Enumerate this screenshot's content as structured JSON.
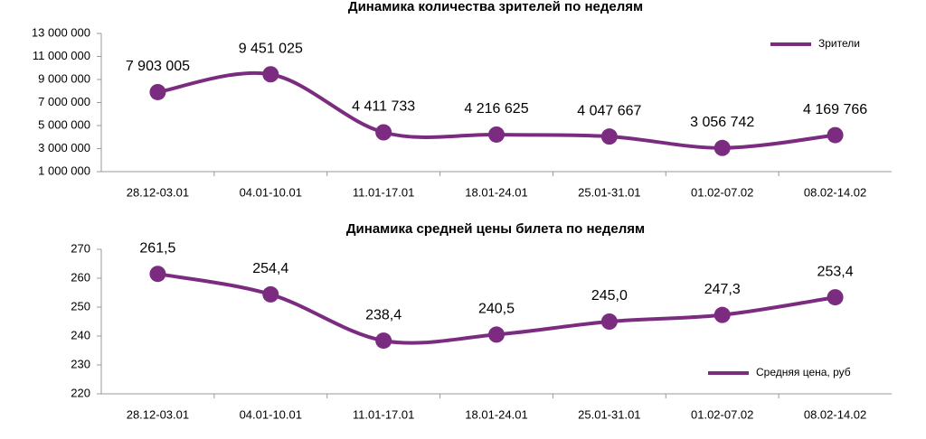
{
  "chart_data": [
    {
      "type": "line",
      "title": "Динамика количества зрителей по неделям",
      "categories": [
        "28.12-03.01",
        "04.01-10.01",
        "11.01-17.01",
        "18.01-24.01",
        "25.01-31.01",
        "01.02-07.02",
        "08.02-14.02"
      ],
      "series": [
        {
          "name": "Зрители",
          "color": "#7b2c80",
          "values": [
            7903005,
            9451025,
            4411733,
            4216625,
            4047667,
            3056742,
            4169766
          ],
          "value_labels": [
            "7 903 005",
            "9 451 025",
            "4 411 733",
            "4 216 625",
            "4 047 667",
            "3 056 742",
            "4 169 766"
          ]
        }
      ],
      "ylim": [
        1000000,
        13000000
      ],
      "yticks": [
        {
          "value": 1000000,
          "label": "1 000 000"
        },
        {
          "value": 3000000,
          "label": "3 000 000"
        },
        {
          "value": 5000000,
          "label": "5 000 000"
        },
        {
          "value": 7000000,
          "label": "7 000 000"
        },
        {
          "value": 9000000,
          "label": "9 000 000"
        },
        {
          "value": 11000000,
          "label": "11 000 000"
        },
        {
          "value": 13000000,
          "label": "13 000 000"
        }
      ],
      "legend": "upper right"
    },
    {
      "type": "line",
      "title": "Динамика средней цены билета по неделям",
      "categories": [
        "28.12-03.01",
        "04.01-10.01",
        "11.01-17.01",
        "18.01-24.01",
        "25.01-31.01",
        "01.02-07.02",
        "08.02-14.02"
      ],
      "series": [
        {
          "name": "Средняя цена, руб",
          "color": "#7b2c80",
          "values": [
            261.5,
            254.4,
            238.4,
            240.5,
            245.0,
            247.3,
            253.4
          ],
          "value_labels": [
            "261,5",
            "254,4",
            "238,4",
            "240,5",
            "245,0",
            "247,3",
            "253,4"
          ]
        }
      ],
      "ylim": [
        220,
        270
      ],
      "yticks": [
        220,
        230,
        240,
        250,
        260,
        270
      ],
      "legend": "lower right"
    }
  ]
}
